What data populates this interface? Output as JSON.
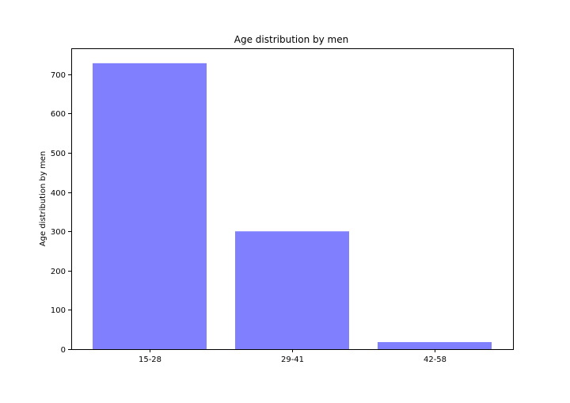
{
  "chart_data": {
    "type": "bar",
    "title": "Age distribution by men",
    "xlabel": "",
    "ylabel": "Age distribution by men",
    "categories": [
      "15-28",
      "29-41",
      "42-58"
    ],
    "values": [
      728,
      300,
      18
    ],
    "ylim": [
      0,
      766
    ],
    "yticks": [
      0,
      100,
      200,
      300,
      400,
      500,
      600,
      700
    ],
    "bar_color": "#8080ff",
    "grid": false,
    "legend": "none"
  }
}
